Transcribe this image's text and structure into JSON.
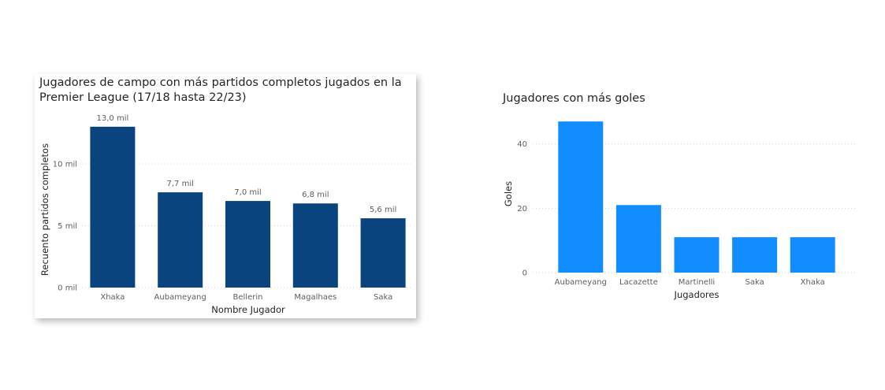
{
  "chart_data": [
    {
      "type": "bar",
      "title": "Jugadores de campo con más partidos completos jugados en la Premier League (17/18 hasta 22/23)",
      "xlabel": "Nombre Jugador",
      "ylabel": "Recuento partidos completos",
      "categories": [
        "Xhaka",
        "Aubameyang",
        "Bellerin",
        "Magalhaes",
        "Saka"
      ],
      "values": [
        13.0,
        7.7,
        7.0,
        6.8,
        5.6
      ],
      "data_labels": [
        "13,0 mil",
        "7,7 mil",
        "7,0 mil",
        "6,8 mil",
        "5,6 mil"
      ],
      "yticks": [
        0,
        5,
        10
      ],
      "ytick_labels": [
        "0 mil",
        "5 mil",
        "10 mil"
      ],
      "ylim": [
        0,
        13.5
      ],
      "grid": true,
      "color": "#0a447f"
    },
    {
      "type": "bar",
      "title": "Jugadores con más goles",
      "xlabel": "Jugadores",
      "ylabel": "Goles",
      "categories": [
        "Aubameyang",
        "Lacazette",
        "Martinelli",
        "Saka",
        "Xhaka"
      ],
      "values": [
        47,
        21,
        11,
        11,
        11
      ],
      "yticks": [
        0,
        20,
        40
      ],
      "ytick_labels": [
        "0",
        "20",
        "40"
      ],
      "ylim": [
        0,
        49
      ],
      "grid": true,
      "color": "#118dff"
    }
  ]
}
